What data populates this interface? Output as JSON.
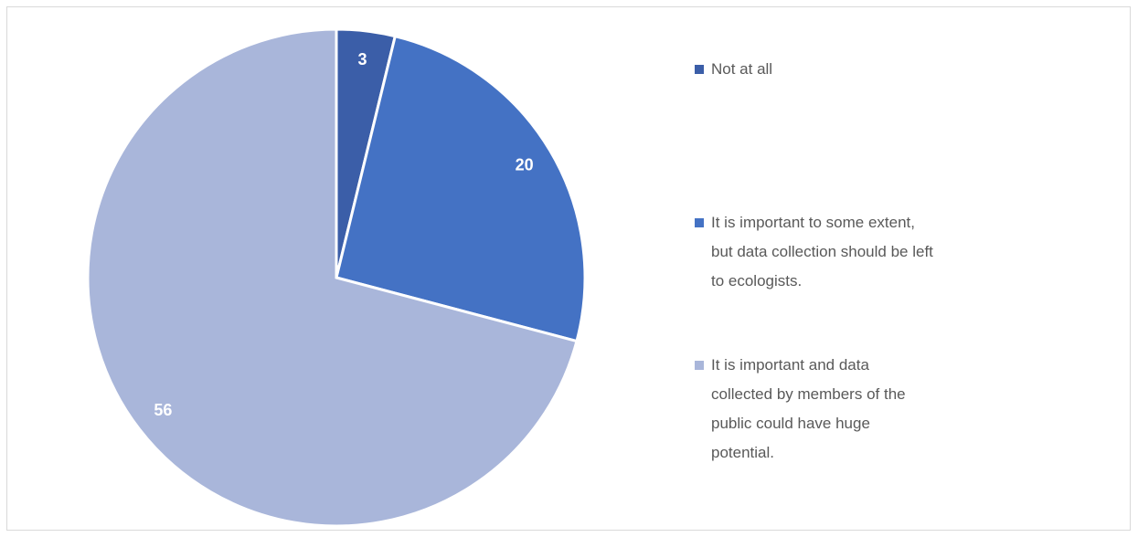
{
  "chart_data": {
    "type": "pie",
    "categories": [
      "Not at all",
      "It is important to some extent, but data collection should be left to ecologists.",
      "It is important and data collected by members of the public could have huge potential."
    ],
    "values": [
      3,
      20,
      56
    ],
    "colors": [
      "#3b5ea8",
      "#4472c4",
      "#a9b6da"
    ],
    "legend": "right"
  }
}
